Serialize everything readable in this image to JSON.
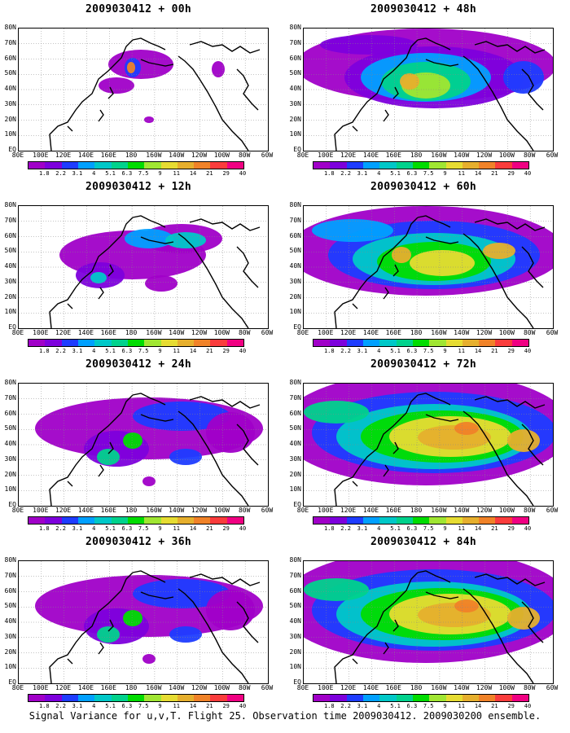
{
  "panels": [
    {
      "title": "2009030412 + 00h",
      "level": 0
    },
    {
      "title": "2009030412 + 48h",
      "level": 3
    },
    {
      "title": "2009030412 + 12h",
      "level": 1
    },
    {
      "title": "2009030412 + 60h",
      "level": 4
    },
    {
      "title": "2009030412 + 24h",
      "level": 2
    },
    {
      "title": "2009030412 + 72h",
      "level": 5
    },
    {
      "title": "2009030412 + 36h",
      "level": 2
    },
    {
      "title": "2009030412 + 84h",
      "level": 5
    }
  ],
  "lat_labels": [
    "80N",
    "70N",
    "60N",
    "50N",
    "40N",
    "30N",
    "20N",
    "10N",
    "EQ"
  ],
  "lon_labels": [
    "80E",
    "100E",
    "120E",
    "140E",
    "160E",
    "180",
    "160W",
    "140W",
    "120W",
    "100W",
    "80W",
    "60W"
  ],
  "colorbar": {
    "labels": [
      "1.8",
      "2.2",
      "3.1",
      "4",
      "5.1",
      "6.3",
      "7.5",
      "9",
      "11",
      "14",
      "21",
      "29",
      "40"
    ],
    "colors": [
      "#a000c8",
      "#7d00dc",
      "#1e3cff",
      "#00a0ff",
      "#00c8c8",
      "#00d28c",
      "#00dc00",
      "#a0e632",
      "#e6dc32",
      "#e6af2d",
      "#f08228",
      "#fa3c3c",
      "#f00082"
    ]
  },
  "footer": "Signal Variance for u,v,T. Flight 25. Observation time 2009030412. 2009030200 ensemble."
}
